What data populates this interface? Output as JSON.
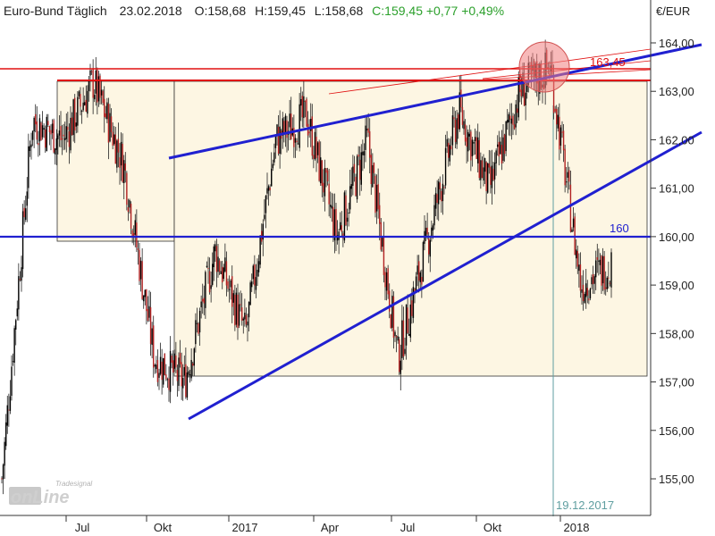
{
  "header": {
    "instrument": "Euro-Bund Täglich",
    "date": "23.02.2018",
    "open": "O:158,68",
    "high": "H:159,45",
    "low": "L:158,68",
    "close_change": "C:159,45 +0,77 +0,49%"
  },
  "watermark": {
    "brand_small": "Tradesignal",
    "brand_big": "onLine"
  },
  "colors": {
    "up_candle": "#000000",
    "down_candle": "#b22222",
    "support_line": "#2020d0",
    "resistance_line": "#e01010",
    "range_box_fill": "#fdf6e3",
    "close_change_text": "#2ca02c",
    "marker_circle": "#f08080"
  },
  "chart_data": {
    "type": "candlestick",
    "title": "Euro-Bund Täglich",
    "ylabel": "€/EUR",
    "ylim": [
      154.5,
      164.3
    ],
    "y_ticks": [
      "164,00",
      "163,00",
      "162,00",
      "161,00",
      "160,00",
      "159,00",
      "158,00",
      "157,00",
      "156,00",
      "155,00"
    ],
    "x_ticks": [
      "Jul",
      "Okt",
      "2017",
      "Apr",
      "Jul",
      "Okt",
      "2018"
    ],
    "grid": false,
    "annotations": {
      "horizontal_160": {
        "value": 160.0,
        "label": "160"
      },
      "resistance_16345": {
        "value": 163.45,
        "label": "163,45"
      },
      "vertical_marker": {
        "date": "19.12.2017",
        "label": "19.12.2017"
      }
    },
    "path_summary": [
      {
        "period": "Jun 2016",
        "close": 155.0
      },
      {
        "period": "Jul 2016",
        "close": 162.4
      },
      {
        "period": "Aug 2016",
        "close": 162.0
      },
      {
        "period": "Sep 2016",
        "close": 163.2
      },
      {
        "period": "Okt 2016",
        "close": 161.5
      },
      {
        "period": "Nov 2016",
        "close": 157.5
      },
      {
        "period": "Dez 2016",
        "close": 157.0
      },
      {
        "period": "Jan 2017",
        "close": 159.7
      },
      {
        "period": "Feb 2017",
        "close": 158.0
      },
      {
        "period": "Mär 2017",
        "close": 162.0
      },
      {
        "period": "Apr 2017",
        "close": 162.5
      },
      {
        "period": "Mai 2017",
        "close": 160.0
      },
      {
        "period": "Jun 2017",
        "close": 162.0
      },
      {
        "period": "Jul 2017",
        "close": 157.5
      },
      {
        "period": "Aug 2017",
        "close": 160.0
      },
      {
        "period": "Sep 2017",
        "close": 162.6
      },
      {
        "period": "Okt 2017",
        "close": 161.0
      },
      {
        "period": "Nov 2017",
        "close": 163.0
      },
      {
        "period": "Dez 2017",
        "close": 163.5
      },
      {
        "period": "Jan 2018",
        "close": 159.0
      },
      {
        "period": "Feb 2018",
        "close": 159.45
      }
    ]
  }
}
